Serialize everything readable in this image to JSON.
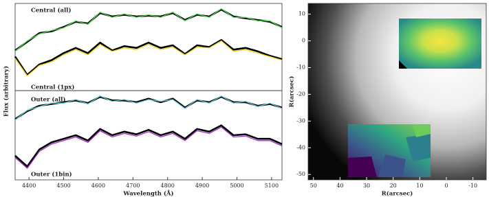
{
  "chart_data": [
    {
      "type": "line",
      "ylabel": "Flux (arbitrary)",
      "x": [
        4360,
        4395,
        4430,
        4465,
        4500,
        4535,
        4570,
        4605,
        4640,
        4675,
        4710,
        4745,
        4780,
        4815,
        4850,
        4885,
        4920,
        4955,
        4990,
        5025,
        5060,
        5095,
        5130
      ],
      "xlim": [
        4360,
        5130
      ],
      "ylim": [
        0,
        10
      ],
      "series": [
        {
          "name": "Central (all)",
          "color": "#4fd64f",
          "model": [
            4.6,
            5.6,
            6.6,
            6.8,
            7.3,
            7.9,
            7.7,
            8.9,
            8.5,
            8.7,
            8.5,
            8.6,
            8.5,
            8.9,
            8.1,
            8.7,
            8.5,
            9.3,
            8.5,
            8.3,
            8.1,
            7.9,
            7.3
          ],
          "values": [
            4.5,
            5.7,
            6.5,
            6.9,
            7.2,
            8.0,
            7.6,
            9.0,
            8.4,
            8.8,
            8.4,
            8.7,
            8.4,
            9.0,
            8.0,
            8.8,
            8.4,
            9.4,
            8.4,
            8.4,
            8.0,
            8.0,
            7.2
          ]
        },
        {
          "name": "Central (1px)",
          "color": "#f0d21e",
          "model": [
            3.9,
            1.8,
            3.0,
            3.5,
            4.3,
            4.9,
            4.3,
            5.5,
            4.6,
            5.1,
            4.9,
            5.5,
            4.9,
            5.2,
            4.2,
            5.2,
            5.0,
            5.8,
            4.7,
            4.9,
            4.5,
            4.0,
            3.6
          ],
          "values": [
            3.7,
            1.7,
            2.9,
            3.3,
            4.1,
            4.7,
            4.1,
            5.3,
            4.5,
            4.9,
            4.7,
            5.3,
            4.7,
            5.0,
            4.1,
            5.0,
            4.9,
            5.7,
            4.5,
            4.7,
            4.3,
            3.9,
            3.5
          ]
        }
      ]
    },
    {
      "type": "line",
      "xlabel": "Wavelength (Å)",
      "x": [
        4360,
        4395,
        4430,
        4465,
        4500,
        4535,
        4570,
        4605,
        4640,
        4675,
        4710,
        4745,
        4780,
        4815,
        4850,
        4885,
        4920,
        4955,
        4990,
        5025,
        5060,
        5095,
        5130
      ],
      "xlim": [
        4360,
        5130
      ],
      "ylim": [
        0,
        10
      ],
      "xticks": [
        4400,
        4500,
        4600,
        4700,
        4800,
        4900,
        5000,
        5100
      ],
      "series": [
        {
          "name": "Outer (all)",
          "color": "#5ec6d6",
          "model": [
            6.8,
            7.7,
            8.3,
            8.5,
            8.7,
            8.9,
            8.6,
            9.3,
            8.9,
            8.9,
            8.7,
            9.1,
            8.7,
            9.1,
            8.1,
            8.9,
            8.7,
            9.3,
            8.7,
            8.7,
            8.3,
            8.5,
            8.1
          ],
          "values": [
            6.7,
            7.8,
            8.2,
            8.6,
            8.6,
            9.0,
            8.5,
            9.4,
            8.8,
            9.0,
            8.6,
            9.0,
            8.8,
            9.0,
            8.0,
            9.0,
            8.6,
            9.4,
            8.6,
            8.8,
            8.2,
            8.6,
            8.0
          ]
        },
        {
          "name": "Outer (1bin)",
          "color": "#a42cc4",
          "model": [
            2.7,
            1.5,
            3.4,
            4.2,
            4.6,
            5.0,
            4.4,
            5.7,
            5.0,
            5.4,
            5.1,
            5.6,
            5.0,
            5.4,
            4.6,
            5.7,
            5.4,
            6.1,
            5.0,
            5.1,
            4.6,
            4.6,
            4.0
          ],
          "values": [
            2.5,
            1.3,
            3.2,
            4.0,
            4.4,
            4.8,
            4.2,
            5.5,
            4.8,
            5.2,
            4.9,
            5.4,
            4.8,
            5.2,
            4.4,
            5.5,
            5.2,
            5.9,
            4.8,
            4.9,
            4.4,
            4.4,
            3.8
          ]
        }
      ]
    },
    {
      "type": "image",
      "xlabel": "R(arcsec)",
      "ylabel": "R(arcsec)",
      "xlim": [
        52,
        -15
      ],
      "ylim": [
        -52,
        14
      ],
      "xticks": [
        50,
        40,
        30,
        20,
        10,
        0,
        -10
      ],
      "yticks": [
        10,
        0,
        -10,
        -20,
        -30,
        -40,
        -50
      ]
    }
  ]
}
